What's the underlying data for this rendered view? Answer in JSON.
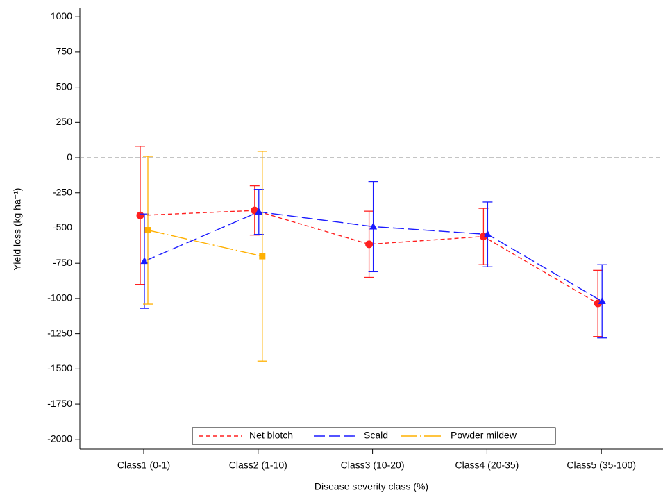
{
  "chart_data": {
    "type": "line",
    "x_label": "Disease severity class (%)",
    "y_label": "Yield loss (kg ha⁻¹)",
    "categories": [
      "Class1 (0-1)",
      "Class2 (1-10)",
      "Class3 (10-20)",
      "Class4 (20-35)",
      "Class5 (35-100)"
    ],
    "ylim": [
      -2070,
      1060
    ],
    "yticks": [
      1000,
      750,
      500,
      250,
      0,
      -250,
      -500,
      -750,
      -1000,
      -1250,
      -1500,
      -1750,
      -2000
    ],
    "reference_line": 0,
    "legend": "lower center",
    "series": [
      {
        "name": "Net blotch",
        "color": "#ff2020",
        "marker": "circle",
        "dash": "short",
        "values": [
          -410,
          -375,
          -615,
          -560,
          -1035
        ],
        "errors": [
          490,
          175,
          235,
          200,
          235
        ]
      },
      {
        "name": "Scald",
        "color": "#1a1aff",
        "marker": "triangle",
        "dash": "long",
        "values": [
          -735,
          -385,
          -490,
          -545,
          -1020
        ],
        "errors": [
          335,
          160,
          320,
          230,
          260
        ]
      },
      {
        "name": "Powder mildew",
        "color": "#ffb000",
        "marker": "square",
        "dash": "longshort",
        "values": [
          -515,
          -700,
          null,
          null,
          null
        ],
        "errors": [
          525,
          745,
          null,
          null,
          null
        ]
      }
    ]
  }
}
